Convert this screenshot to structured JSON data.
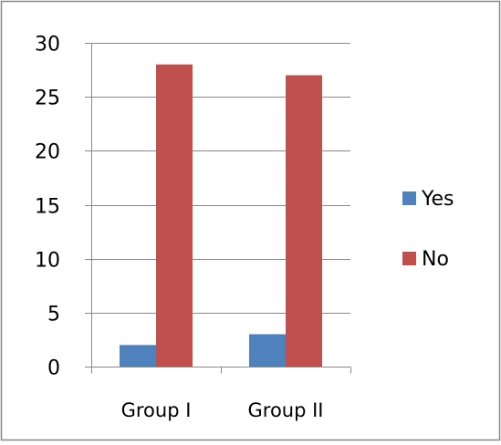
{
  "chart_data": {
    "type": "bar",
    "categories": [
      "Group I",
      "Group II"
    ],
    "series": [
      {
        "name": "Yes",
        "values": [
          2,
          3
        ],
        "color": "#4f81bd"
      },
      {
        "name": "No",
        "values": [
          28,
          27
        ],
        "color": "#c0504d"
      }
    ],
    "title": "",
    "xlabel": "",
    "ylabel": "",
    "ylim": [
      0,
      30
    ],
    "yticks": [
      0,
      5,
      10,
      15,
      20,
      25,
      30
    ],
    "grid": true,
    "legend": "right"
  },
  "colors": {
    "border": "#888888",
    "gridline": "#888888",
    "axis": "#888888"
  }
}
